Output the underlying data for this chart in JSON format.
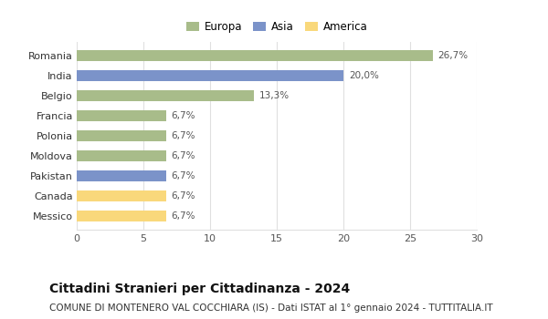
{
  "categories": [
    "Messico",
    "Canada",
    "Pakistan",
    "Moldova",
    "Polonia",
    "Francia",
    "Belgio",
    "India",
    "Romania"
  ],
  "values": [
    6.7,
    6.7,
    6.7,
    6.7,
    6.7,
    6.7,
    13.3,
    20.0,
    26.7
  ],
  "labels": [
    "6,7%",
    "6,7%",
    "6,7%",
    "6,7%",
    "6,7%",
    "6,7%",
    "13,3%",
    "20,0%",
    "26,7%"
  ],
  "colors": [
    "#f9d87b",
    "#f9d87b",
    "#7b93c9",
    "#a8bc8a",
    "#a8bc8a",
    "#a8bc8a",
    "#a8bc8a",
    "#7b93c9",
    "#a8bc8a"
  ],
  "legend_labels": [
    "Europa",
    "Asia",
    "America"
  ],
  "legend_colors": [
    "#a8bc8a",
    "#7b93c9",
    "#f9d87b"
  ],
  "xlim": [
    0,
    30
  ],
  "xticks": [
    0,
    5,
    10,
    15,
    20,
    25,
    30
  ],
  "title": "Cittadini Stranieri per Cittadinanza - 2024",
  "subtitle": "COMUNE DI MONTENERO VAL COCCHIARA (IS) - Dati ISTAT al 1° gennaio 2024 - TUTTITALIA.IT",
  "title_fontsize": 10,
  "subtitle_fontsize": 7.5,
  "bar_height": 0.55,
  "label_fontsize": 7.5,
  "tick_fontsize": 8,
  "background_color": "#ffffff",
  "grid_color": "#e0e0e0"
}
